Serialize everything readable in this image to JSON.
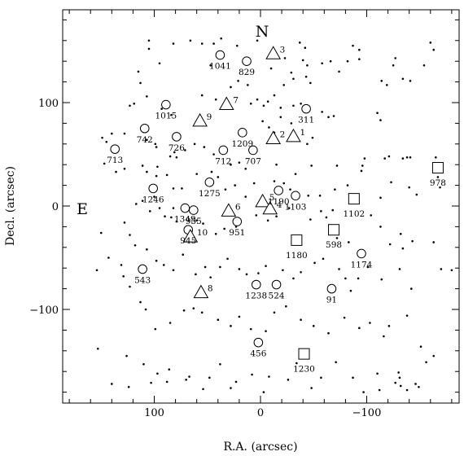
{
  "chart_data": {
    "type": "scatter",
    "xlabel": "R.A. (arcsec)",
    "ylabel": "Decl. (arcsec)",
    "xlim": [
      185,
      -185
    ],
    "ylim": [
      -190,
      190
    ],
    "xticks": [
      100,
      0,
      -100
    ],
    "yticks": [
      100,
      0,
      -100
    ],
    "compass": {
      "north": "N",
      "east": "E"
    },
    "series": [
      {
        "marker": "circle",
        "points": [
          {
            "x": 38,
            "y": 146,
            "label": "1041"
          },
          {
            "x": 13,
            "y": 140,
            "label": "829"
          },
          {
            "x": -43,
            "y": 94,
            "label": "311"
          },
          {
            "x": 89,
            "y": 98,
            "label": "1015"
          },
          {
            "x": 109,
            "y": 75,
            "label": "742"
          },
          {
            "x": 79,
            "y": 67,
            "label": "726"
          },
          {
            "x": 17,
            "y": 71,
            "label": "1209"
          },
          {
            "x": 35,
            "y": 54,
            "label": "712"
          },
          {
            "x": 7,
            "y": 54,
            "label": "707"
          },
          {
            "x": 137,
            "y": 55,
            "label": "713"
          },
          {
            "x": 101,
            "y": 17,
            "label": "1246"
          },
          {
            "x": 48,
            "y": 23,
            "label": "1275"
          },
          {
            "x": -17,
            "y": 15,
            "label": "1190"
          },
          {
            "x": -33,
            "y": 10,
            "label": "1103"
          },
          {
            "x": 71,
            "y": -2,
            "label": "1349"
          },
          {
            "x": 63,
            "y": -4,
            "label": "955"
          },
          {
            "x": 68,
            "y": -23,
            "label": "945"
          },
          {
            "x": 22,
            "y": -15,
            "label": "951"
          },
          {
            "x": 111,
            "y": -61,
            "label": "543"
          },
          {
            "x": 4,
            "y": -76,
            "label": "1238"
          },
          {
            "x": -15,
            "y": -76,
            "label": "524"
          },
          {
            "x": -67,
            "y": -80,
            "label": "91"
          },
          {
            "x": -95,
            "y": -46,
            "label": "1174"
          },
          {
            "x": 2,
            "y": -132,
            "label": "456"
          }
        ]
      },
      {
        "marker": "triangle",
        "points": [
          {
            "x": -12,
            "y": 147,
            "label": "3"
          },
          {
            "x": 32,
            "y": 98,
            "label": "7"
          },
          {
            "x": 57,
            "y": 82,
            "label": "9"
          },
          {
            "x": -12,
            "y": 65,
            "label": "2"
          },
          {
            "x": -31,
            "y": 67,
            "label": "1"
          },
          {
            "x": -2,
            "y": 4,
            "label": "5"
          },
          {
            "x": 30,
            "y": -5,
            "label": "6"
          },
          {
            "x": -9,
            "y": -3,
            "label": "4"
          },
          {
            "x": 66,
            "y": -30,
            "label": "10"
          },
          {
            "x": 56,
            "y": -84,
            "label": "8"
          }
        ]
      },
      {
        "marker": "square",
        "points": [
          {
            "x": -167,
            "y": 37,
            "label": "978"
          },
          {
            "x": -88,
            "y": 7,
            "label": "1102"
          },
          {
            "x": -69,
            "y": -23,
            "label": "598"
          },
          {
            "x": -34,
            "y": -33,
            "label": "1180"
          },
          {
            "x": -41,
            "y": -143,
            "label": "1230"
          }
        ]
      }
    ],
    "background_points": [
      [
        105,
        160
      ],
      [
        105,
        152
      ],
      [
        82,
        157
      ],
      [
        66,
        160
      ],
      [
        55,
        157
      ],
      [
        37,
        162
      ],
      [
        44,
        157
      ],
      [
        22,
        155
      ],
      [
        3,
        160
      ],
      [
        -37,
        158
      ],
      [
        -42,
        153
      ],
      [
        -87,
        155
      ],
      [
        -93,
        151
      ],
      [
        -82,
        140
      ],
      [
        -93,
        142
      ],
      [
        -127,
        143
      ],
      [
        -125,
        136
      ],
      [
        -160,
        158
      ],
      [
        -163,
        151
      ],
      [
        95,
        138
      ],
      [
        47,
        136
      ],
      [
        -23,
        143
      ],
      [
        -40,
        141
      ],
      [
        -44,
        136
      ],
      [
        -58,
        138
      ],
      [
        -66,
        140
      ],
      [
        -74,
        130
      ],
      [
        -154,
        136
      ],
      [
        -141,
        121
      ],
      [
        -134,
        123
      ],
      [
        -114,
        121
      ],
      [
        -119,
        117
      ],
      [
        -10,
        133
      ],
      [
        -29,
        129
      ],
      [
        -31,
        123
      ],
      [
        -43,
        125
      ],
      [
        -47,
        119
      ],
      [
        -22,
        117
      ],
      [
        -13,
        107
      ],
      [
        -7,
        101
      ],
      [
        -3,
        97
      ],
      [
        -19,
        95
      ],
      [
        -31,
        97
      ],
      [
        -38,
        99
      ],
      [
        -58,
        91
      ],
      [
        -64,
        86
      ],
      [
        -69,
        87
      ],
      [
        -110,
        90
      ],
      [
        -113,
        83
      ],
      [
        115,
        130
      ],
      [
        113,
        119
      ],
      [
        107,
        106
      ],
      [
        119,
        99
      ],
      [
        123,
        97
      ],
      [
        93,
        94
      ],
      [
        84,
        88
      ],
      [
        55,
        107
      ],
      [
        42,
        103
      ],
      [
        28,
        115
      ],
      [
        21,
        121
      ],
      [
        12,
        117
      ],
      [
        3,
        103
      ],
      [
        9,
        99
      ],
      [
        -2,
        82
      ],
      [
        -8,
        76
      ],
      [
        -13,
        71
      ],
      [
        -29,
        80
      ],
      [
        -19,
        86
      ],
      [
        -44,
        60
      ],
      [
        -49,
        66
      ],
      [
        107,
        64
      ],
      [
        99,
        60
      ],
      [
        98,
        57
      ],
      [
        85,
        48
      ],
      [
        81,
        52
      ],
      [
        79,
        47
      ],
      [
        71,
        54
      ],
      [
        62,
        60
      ],
      [
        53,
        57
      ],
      [
        44,
        50
      ],
      [
        20,
        42
      ],
      [
        28,
        40
      ],
      [
        14,
        36
      ],
      [
        -15,
        40
      ],
      [
        -33,
        31
      ],
      [
        -48,
        39
      ],
      [
        -72,
        39
      ],
      [
        -96,
        39
      ],
      [
        -98,
        46
      ],
      [
        -117,
        46
      ],
      [
        -121,
        48
      ],
      [
        -134,
        46
      ],
      [
        -138,
        47
      ],
      [
        -141,
        47
      ],
      [
        128,
        70
      ],
      [
        140,
        70
      ],
      [
        149,
        66
      ],
      [
        145,
        62
      ],
      [
        136,
        33
      ],
      [
        128,
        36
      ],
      [
        147,
        41
      ],
      [
        111,
        39
      ],
      [
        107,
        33
      ],
      [
        98,
        29
      ],
      [
        97,
        38
      ],
      [
        88,
        30
      ],
      [
        82,
        17
      ],
      [
        74,
        17
      ],
      [
        60,
        31
      ],
      [
        46,
        33
      ],
      [
        40,
        28
      ],
      [
        33,
        16
      ],
      [
        24,
        20
      ],
      [
        14,
        9
      ],
      [
        6,
        22
      ],
      [
        -13,
        24
      ],
      [
        -22,
        22
      ],
      [
        -28,
        16
      ],
      [
        -45,
        10
      ],
      [
        -56,
        10
      ],
      [
        -70,
        16
      ],
      [
        -82,
        20
      ],
      [
        -95,
        34
      ],
      [
        -113,
        8
      ],
      [
        -123,
        23
      ],
      [
        -140,
        18
      ],
      [
        -147,
        11
      ],
      [
        -167,
        28
      ],
      [
        -169,
        18
      ],
      [
        -165,
        47
      ],
      [
        117,
        2
      ],
      [
        111,
        5
      ],
      [
        100,
        9
      ],
      [
        104,
        -5
      ],
      [
        95,
        -2
      ],
      [
        90,
        -10
      ],
      [
        84,
        -11
      ],
      [
        79,
        -15
      ],
      [
        82,
        -2
      ],
      [
        60,
        -14
      ],
      [
        54,
        -17
      ],
      [
        42,
        -27
      ],
      [
        34,
        -22
      ],
      [
        25,
        -9
      ],
      [
        23,
        -20
      ],
      [
        4,
        -9
      ],
      [
        -7,
        -14
      ],
      [
        -15,
        -10
      ],
      [
        -27,
        -2
      ],
      [
        -47,
        -13
      ],
      [
        -57,
        -5
      ],
      [
        -62,
        -11
      ],
      [
        -68,
        -4
      ],
      [
        -72,
        -31
      ],
      [
        -83,
        -35
      ],
      [
        -104,
        -9
      ],
      [
        -113,
        -20
      ],
      [
        -122,
        -37
      ],
      [
        -134,
        -41
      ],
      [
        -132,
        -27
      ],
      [
        -143,
        -34
      ],
      [
        150,
        -26
      ],
      [
        128,
        -16
      ],
      [
        123,
        -28
      ],
      [
        118,
        -38
      ],
      [
        107,
        -42
      ],
      [
        98,
        -53
      ],
      [
        91,
        -57
      ],
      [
        82,
        -62
      ],
      [
        73,
        -47
      ],
      [
        61,
        -66
      ],
      [
        52,
        -59
      ],
      [
        47,
        -69
      ],
      [
        38,
        -59
      ],
      [
        31,
        -51
      ],
      [
        20,
        -61
      ],
      [
        13,
        -66
      ],
      [
        2,
        -65
      ],
      [
        -5,
        -58
      ],
      [
        -21,
        -62
      ],
      [
        -31,
        -70
      ],
      [
        -38,
        -64
      ],
      [
        -51,
        -55
      ],
      [
        -59,
        -51
      ],
      [
        -74,
        -61
      ],
      [
        -80,
        -70
      ],
      [
        -85,
        -82
      ],
      [
        -92,
        -70
      ],
      [
        -101,
        -59
      ],
      [
        -114,
        -71
      ],
      [
        -131,
        -61
      ],
      [
        -142,
        -80
      ],
      [
        -163,
        -35
      ],
      [
        -170,
        -61
      ],
      [
        -180,
        -62
      ],
      [
        131,
        -57
      ],
      [
        143,
        -50
      ],
      [
        154,
        -62
      ],
      [
        129,
        -68
      ],
      [
        123,
        -78
      ],
      [
        113,
        -93
      ],
      [
        108,
        -100
      ],
      [
        99,
        -119
      ],
      [
        85,
        -113
      ],
      [
        72,
        -101
      ],
      [
        63,
        -99
      ],
      [
        55,
        -103
      ],
      [
        40,
        -110
      ],
      [
        28,
        -116
      ],
      [
        20,
        -107
      ],
      [
        9,
        -119
      ],
      [
        -5,
        -121
      ],
      [
        -13,
        -103
      ],
      [
        -24,
        -97
      ],
      [
        -38,
        -110
      ],
      [
        -50,
        -116
      ],
      [
        -64,
        -123
      ],
      [
        -79,
        -108
      ],
      [
        -93,
        -118
      ],
      [
        -103,
        -113
      ],
      [
        -116,
        -126
      ],
      [
        -121,
        -116
      ],
      [
        -138,
        -106
      ],
      [
        -151,
        -136
      ],
      [
        -156,
        -151
      ],
      [
        -163,
        -145
      ],
      [
        153,
        -138
      ],
      [
        126,
        -145
      ],
      [
        110,
        -153
      ],
      [
        97,
        -162
      ],
      [
        86,
        -158
      ],
      [
        67,
        -165
      ],
      [
        54,
        -177
      ],
      [
        48,
        -166
      ],
      [
        38,
        -153
      ],
      [
        23,
        -170
      ],
      [
        8,
        -163
      ],
      [
        -8,
        -165
      ],
      [
        -26,
        -168
      ],
      [
        -34,
        -152
      ],
      [
        -57,
        -166
      ],
      [
        -71,
        -151
      ],
      [
        -87,
        -166
      ],
      [
        -97,
        -180
      ],
      [
        -110,
        -162
      ],
      [
        -127,
        -171
      ],
      [
        -131,
        -166
      ],
      [
        -132,
        -174
      ],
      [
        -138,
        -178
      ],
      [
        -149,
        -175
      ],
      [
        140,
        -172
      ],
      [
        124,
        -175
      ],
      [
        103,
        -171
      ],
      [
        88,
        -170
      ],
      [
        70,
        -168
      ],
      [
        28,
        -176
      ],
      [
        -3,
        -180
      ],
      [
        -48,
        -176
      ],
      [
        -112,
        -178
      ],
      [
        -130,
        -161
      ],
      [
        -146,
        -172
      ]
    ]
  }
}
